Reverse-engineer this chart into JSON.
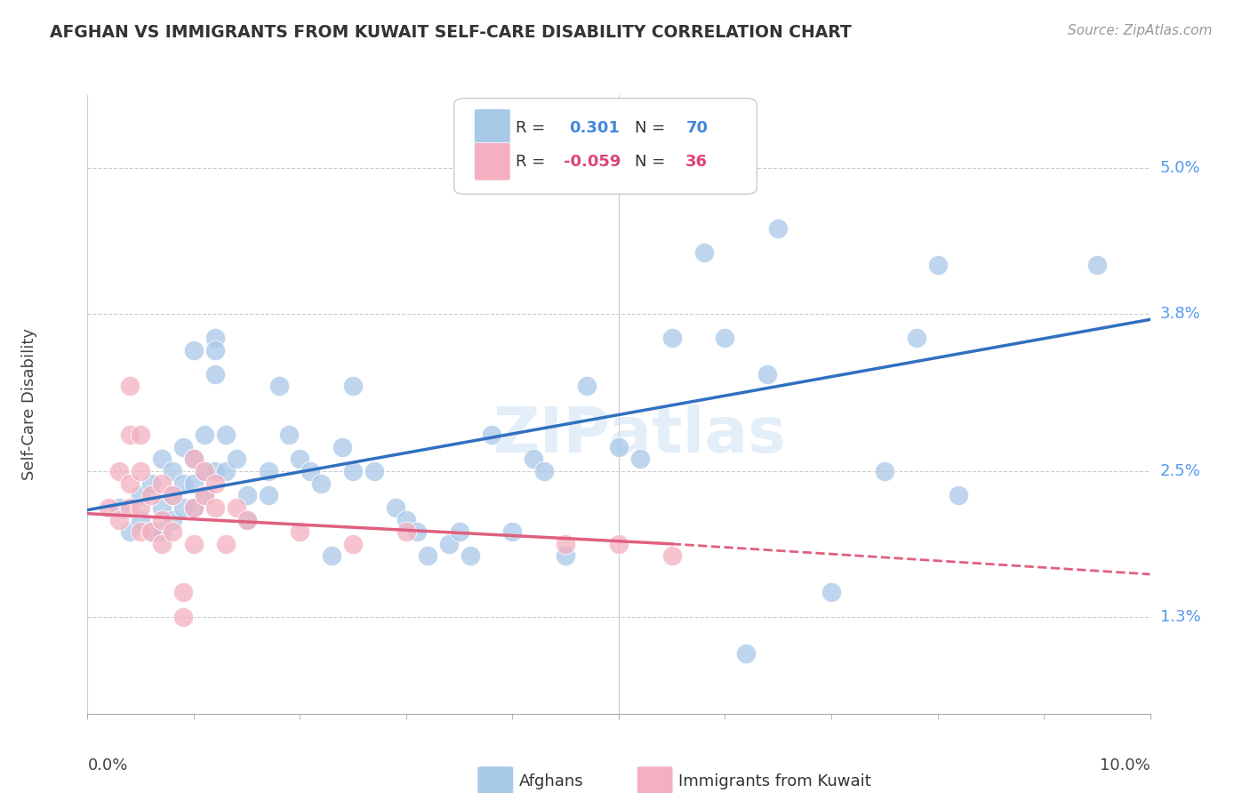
{
  "title": "AFGHAN VS IMMIGRANTS FROM KUWAIT SELF-CARE DISABILITY CORRELATION CHART",
  "source": "Source: ZipAtlas.com",
  "ylabel": "Self-Care Disability",
  "yticks": [
    "5.0%",
    "3.8%",
    "2.5%",
    "1.3%"
  ],
  "ytick_vals": [
    5.0,
    3.8,
    2.5,
    1.3
  ],
  "xlim": [
    0.0,
    10.0
  ],
  "ylim": [
    0.5,
    5.6
  ],
  "legend_label1": "Afghans",
  "legend_label2": "Immigrants from Kuwait",
  "blue_color": "#a8c8e8",
  "pink_color": "#f4b0c0",
  "blue_line_color": "#3070c0",
  "pink_line_color": "#e06080",
  "watermark": "ZIPatlas",
  "blue_scatter": [
    [
      0.3,
      2.2
    ],
    [
      0.4,
      2.0
    ],
    [
      0.5,
      2.3
    ],
    [
      0.5,
      2.1
    ],
    [
      0.6,
      2.4
    ],
    [
      0.6,
      2.0
    ],
    [
      0.7,
      2.6
    ],
    [
      0.7,
      2.2
    ],
    [
      0.7,
      2.0
    ],
    [
      0.8,
      2.5
    ],
    [
      0.8,
      2.3
    ],
    [
      0.8,
      2.1
    ],
    [
      0.9,
      2.7
    ],
    [
      0.9,
      2.4
    ],
    [
      0.9,
      2.2
    ],
    [
      1.0,
      3.5
    ],
    [
      1.0,
      2.6
    ],
    [
      1.0,
      2.4
    ],
    [
      1.0,
      2.2
    ],
    [
      1.1,
      2.8
    ],
    [
      1.1,
      2.5
    ],
    [
      1.1,
      2.3
    ],
    [
      1.2,
      3.6
    ],
    [
      1.2,
      3.5
    ],
    [
      1.2,
      3.3
    ],
    [
      1.2,
      2.5
    ],
    [
      1.3,
      2.8
    ],
    [
      1.3,
      2.5
    ],
    [
      1.4,
      2.6
    ],
    [
      1.5,
      2.3
    ],
    [
      1.5,
      2.1
    ],
    [
      1.7,
      2.5
    ],
    [
      1.7,
      2.3
    ],
    [
      1.8,
      3.2
    ],
    [
      1.9,
      2.8
    ],
    [
      2.0,
      2.6
    ],
    [
      2.1,
      2.5
    ],
    [
      2.2,
      2.4
    ],
    [
      2.3,
      1.8
    ],
    [
      2.4,
      2.7
    ],
    [
      2.5,
      3.2
    ],
    [
      2.5,
      2.5
    ],
    [
      2.7,
      2.5
    ],
    [
      2.9,
      2.2
    ],
    [
      3.0,
      2.1
    ],
    [
      3.1,
      2.0
    ],
    [
      3.2,
      1.8
    ],
    [
      3.4,
      1.9
    ],
    [
      3.5,
      2.0
    ],
    [
      3.6,
      1.8
    ],
    [
      3.8,
      2.8
    ],
    [
      4.0,
      2.0
    ],
    [
      4.2,
      2.6
    ],
    [
      4.3,
      2.5
    ],
    [
      4.5,
      1.8
    ],
    [
      4.7,
      3.2
    ],
    [
      5.0,
      2.7
    ],
    [
      5.2,
      2.6
    ],
    [
      5.5,
      3.6
    ],
    [
      5.8,
      4.3
    ],
    [
      6.0,
      3.6
    ],
    [
      6.2,
      1.0
    ],
    [
      6.4,
      3.3
    ],
    [
      6.5,
      4.5
    ],
    [
      7.0,
      1.5
    ],
    [
      7.5,
      2.5
    ],
    [
      7.8,
      3.6
    ],
    [
      8.0,
      4.2
    ],
    [
      8.2,
      2.3
    ],
    [
      9.5,
      4.2
    ]
  ],
  "pink_scatter": [
    [
      0.2,
      2.2
    ],
    [
      0.3,
      2.5
    ],
    [
      0.3,
      2.1
    ],
    [
      0.4,
      3.2
    ],
    [
      0.4,
      2.8
    ],
    [
      0.4,
      2.4
    ],
    [
      0.4,
      2.2
    ],
    [
      0.5,
      2.8
    ],
    [
      0.5,
      2.5
    ],
    [
      0.5,
      2.2
    ],
    [
      0.5,
      2.0
    ],
    [
      0.6,
      2.3
    ],
    [
      0.6,
      2.0
    ],
    [
      0.7,
      2.4
    ],
    [
      0.7,
      2.1
    ],
    [
      0.7,
      1.9
    ],
    [
      0.8,
      2.3
    ],
    [
      0.8,
      2.0
    ],
    [
      0.9,
      1.5
    ],
    [
      0.9,
      1.3
    ],
    [
      1.0,
      2.6
    ],
    [
      1.0,
      2.2
    ],
    [
      1.0,
      1.9
    ],
    [
      1.1,
      2.5
    ],
    [
      1.1,
      2.3
    ],
    [
      1.2,
      2.4
    ],
    [
      1.2,
      2.2
    ],
    [
      1.3,
      1.9
    ],
    [
      1.4,
      2.2
    ],
    [
      1.5,
      2.1
    ],
    [
      2.0,
      2.0
    ],
    [
      2.5,
      1.9
    ],
    [
      3.0,
      2.0
    ],
    [
      4.5,
      1.9
    ],
    [
      5.0,
      1.9
    ],
    [
      5.5,
      1.8
    ]
  ],
  "blue_line": [
    [
      0.0,
      2.18
    ],
    [
      10.0,
      3.75
    ]
  ],
  "pink_line": [
    [
      0.0,
      2.15
    ],
    [
      5.5,
      1.9
    ]
  ],
  "pink_line_dashed": [
    [
      5.5,
      1.9
    ],
    [
      10.0,
      1.65
    ]
  ]
}
